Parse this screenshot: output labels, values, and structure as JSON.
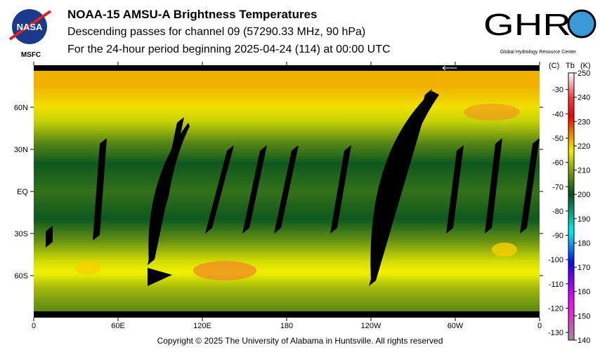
{
  "header": {
    "title": "NOAA-15 AMSU-A Brightness Temperatures",
    "subtitle": "Descending passes for channel 09 (57290.33 MHz, 90 hPa)",
    "period": "For the 24-hour period beginning 2025-04-24 (114) at 00:00 UTC"
  },
  "logos": {
    "nasa": "NASA",
    "nasa_sub": "MSFC",
    "ghrc": "GHRC",
    "ghrc_sub": "Global Hydrology Resource Center"
  },
  "footer": {
    "copyright": "Copyright © 2025 The University of Alabama in Huntsville.  All rights reserved"
  },
  "chart_data": {
    "type": "heatmap",
    "title": "NOAA-15 AMSU-A Brightness Temperatures",
    "x_ticks": [
      "0",
      "60E",
      "120E",
      "180",
      "120W",
      "60W",
      "0"
    ],
    "y_ticks": [
      "60N",
      "30N",
      "EQ",
      "30S",
      "60S"
    ],
    "xlim": [
      0,
      360
    ],
    "ylim": [
      -90,
      90
    ],
    "colorbar": {
      "label_c": "(C)",
      "label_tb": "Tb",
      "label_k": "(K)",
      "range_k": [
        140,
        250
      ],
      "ticks_k": [
        "250",
        "240",
        "230",
        "220",
        "210",
        "200",
        "190",
        "180",
        "170",
        "160",
        "150",
        "140"
      ],
      "ticks_c": [
        "-30",
        "-40",
        "-50",
        "-60",
        "-70",
        "-80",
        "-90",
        "-100",
        "-110",
        "-120",
        "-130"
      ],
      "ticks_c_values": [
        -30,
        -40,
        -50,
        -60,
        -70,
        -80,
        -90,
        -100,
        -110,
        -120,
        -130
      ],
      "stops": [
        {
          "k": 140,
          "color": "#a08aa0"
        },
        {
          "k": 150,
          "color": "#e030d0"
        },
        {
          "k": 155,
          "color": "#f010f0"
        },
        {
          "k": 165,
          "color": "#8000f0"
        },
        {
          "k": 172,
          "color": "#0010f0"
        },
        {
          "k": 180,
          "color": "#10a0f0"
        },
        {
          "k": 185,
          "color": "#00f0f0"
        },
        {
          "k": 192,
          "color": "#10a080"
        },
        {
          "k": 200,
          "color": "#005020"
        },
        {
          "k": 210,
          "color": "#80a010"
        },
        {
          "k": 218,
          "color": "#f0f000"
        },
        {
          "k": 225,
          "color": "#f08000"
        },
        {
          "k": 232,
          "color": "#f00000"
        },
        {
          "k": 240,
          "color": "#f04040"
        },
        {
          "k": 250,
          "color": "#ffffff"
        }
      ]
    },
    "lat_profile_k": [
      {
        "lat": 90,
        "k": 222
      },
      {
        "lat": 75,
        "k": 222
      },
      {
        "lat": 60,
        "k": 219
      },
      {
        "lat": 50,
        "k": 215
      },
      {
        "lat": 35,
        "k": 207
      },
      {
        "lat": 20,
        "k": 201
      },
      {
        "lat": 0,
        "k": 204
      },
      {
        "lat": -20,
        "k": 201
      },
      {
        "lat": -35,
        "k": 208
      },
      {
        "lat": -50,
        "k": 216
      },
      {
        "lat": -58,
        "k": 218
      },
      {
        "lat": -70,
        "k": 212
      },
      {
        "lat": -90,
        "k": 207
      }
    ]
  }
}
